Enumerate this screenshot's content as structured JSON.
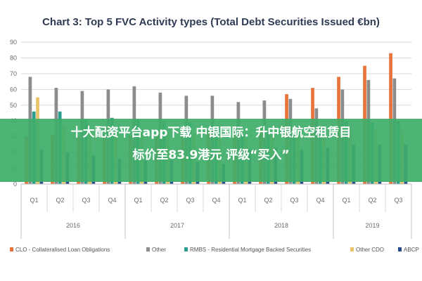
{
  "chart_data": {
    "type": "bar",
    "title": "Chart 3: Top 5 FVC Activity types (Total Debt Securities Issued €bn)",
    "xlabel": "",
    "ylabel": "",
    "ylim": [
      0,
      90
    ],
    "yticks": [
      0,
      10,
      20,
      30,
      40,
      50,
      60,
      70,
      80,
      90
    ],
    "grid": true,
    "legend_position": "bottom",
    "categories": [
      "Q1",
      "Q2",
      "Q3",
      "Q4",
      "Q1",
      "Q2",
      "Q3",
      "Q4",
      "Q1",
      "Q2",
      "Q3",
      "Q4",
      "Q1",
      "Q2",
      "Q3"
    ],
    "years": [
      {
        "label": "2016",
        "count": 4
      },
      {
        "label": "2017",
        "count": 4
      },
      {
        "label": "2018",
        "count": 4
      },
      {
        "label": "2019",
        "count": 3
      }
    ],
    "series": [
      {
        "name": "CLO - Collateralised Loan Obligations",
        "color": "#e8743b",
        "values": [
          30,
          31,
          30,
          32,
          31,
          31,
          33,
          34,
          37,
          36,
          57,
          61,
          68,
          75,
          83
        ]
      },
      {
        "name": "Other",
        "color": "#8c8c8c",
        "values": [
          68,
          61,
          59,
          60,
          62,
          58,
          56,
          56,
          52,
          53,
          54,
          48,
          60,
          66,
          67
        ]
      },
      {
        "name": "RMBS - Residential Mortgage Backed Securities",
        "color": "#2a9d8f",
        "values": [
          46,
          46,
          41,
          42,
          41,
          40,
          39,
          36,
          31,
          33,
          36,
          36,
          40,
          39,
          40
        ]
      },
      {
        "name": "Other CDO",
        "color": "#e9c46a",
        "values": [
          55,
          37,
          34,
          34,
          33,
          32,
          32,
          30,
          29,
          31,
          32,
          31,
          35,
          34,
          34
        ]
      },
      {
        "name": "ABCP",
        "color": "#264b8c",
        "values": [
          22,
          20,
          18,
          16,
          15,
          15,
          14,
          13,
          22,
          23,
          22,
          23,
          25,
          25,
          25
        ]
      }
    ]
  },
  "banner": {
    "line1": "十大配资平台app下载 中银国际：升中银航空租赁目",
    "line2": "标价至83.9港元 评级“买入”"
  }
}
